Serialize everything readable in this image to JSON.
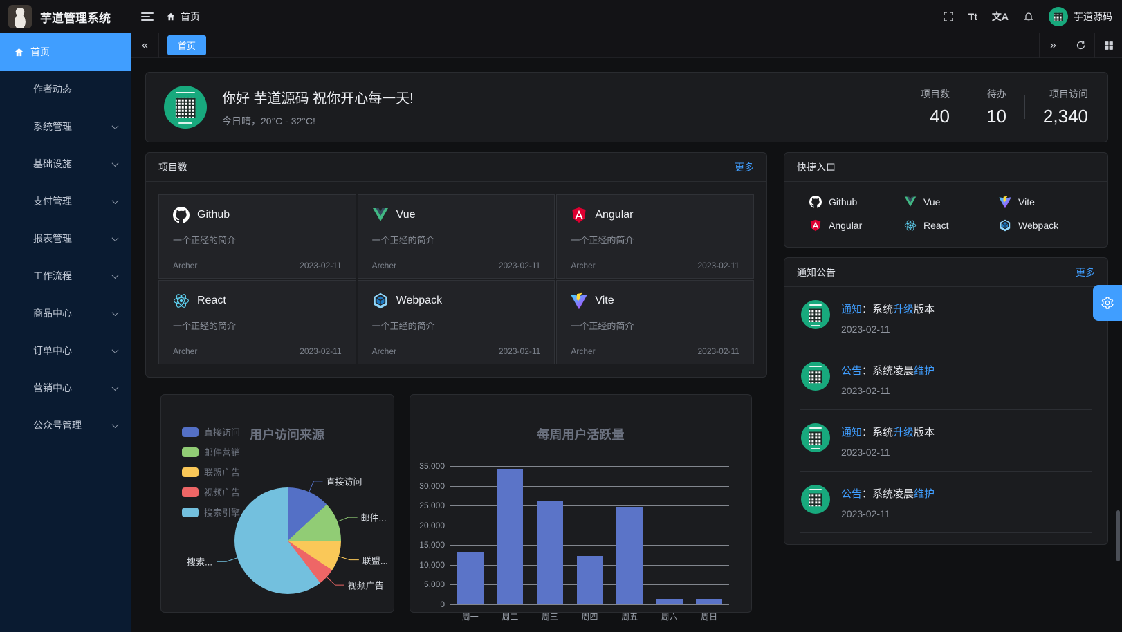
{
  "app": {
    "title": "芋道管理系统",
    "user_name": "芋道源码"
  },
  "header": {
    "breadcrumb_home": "首页",
    "font_size_text": "Tt",
    "locale_text": "文A"
  },
  "tabbar": {
    "active_tab": "首页",
    "collapse_glyph": "«",
    "expand_glyph": "»"
  },
  "sidebar": {
    "items": [
      {
        "label": "首页",
        "active": true,
        "icon": "home",
        "expandable": false
      },
      {
        "label": "作者动态",
        "expandable": false
      },
      {
        "label": "系统管理",
        "expandable": true
      },
      {
        "label": "基础设施",
        "expandable": true
      },
      {
        "label": "支付管理",
        "expandable": true
      },
      {
        "label": "报表管理",
        "expandable": true
      },
      {
        "label": "工作流程",
        "expandable": true
      },
      {
        "label": "商品中心",
        "expandable": true
      },
      {
        "label": "订单中心",
        "expandable": true
      },
      {
        "label": "营销中心",
        "expandable": true
      },
      {
        "label": "公众号管理",
        "expandable": true
      }
    ]
  },
  "greeting": {
    "title": "你好 芋道源码 祝你开心每一天!",
    "subtitle": "今日晴，20°C - 32°C!"
  },
  "stats": [
    {
      "label": "项目数",
      "value": "40"
    },
    {
      "label": "待办",
      "value": "10"
    },
    {
      "label": "项目访问",
      "value": "2,340"
    }
  ],
  "projects": {
    "title": "项目数",
    "more": "更多",
    "items": [
      {
        "name": "Github",
        "icon": "github",
        "desc": "一个正经的简介",
        "author": "Archer",
        "date": "2023-02-11"
      },
      {
        "name": "Vue",
        "icon": "vue",
        "desc": "一个正经的简介",
        "author": "Archer",
        "date": "2023-02-11"
      },
      {
        "name": "Angular",
        "icon": "angular",
        "desc": "一个正经的简介",
        "author": "Archer",
        "date": "2023-02-11"
      },
      {
        "name": "React",
        "icon": "react",
        "desc": "一个正经的简介",
        "author": "Archer",
        "date": "2023-02-11"
      },
      {
        "name": "Webpack",
        "icon": "webpack",
        "desc": "一个正经的简介",
        "author": "Archer",
        "date": "2023-02-11"
      },
      {
        "name": "Vite",
        "icon": "vite",
        "desc": "一个正经的简介",
        "author": "Archer",
        "date": "2023-02-11"
      }
    ]
  },
  "quick_entry": {
    "title": "快捷入口",
    "items": [
      {
        "name": "Github",
        "icon": "github"
      },
      {
        "name": "Vue",
        "icon": "vue"
      },
      {
        "name": "Vite",
        "icon": "vite"
      },
      {
        "name": "Angular",
        "icon": "angular"
      },
      {
        "name": "React",
        "icon": "react"
      },
      {
        "name": "Webpack",
        "icon": "webpack"
      }
    ]
  },
  "notices": {
    "title": "通知公告",
    "more": "更多",
    "items": [
      {
        "segments": [
          {
            "text": "通知",
            "link": true
          },
          {
            "text": "：系统"
          },
          {
            "text": "升级",
            "link": true
          },
          {
            "text": "版本"
          }
        ],
        "date": "2023-02-11"
      },
      {
        "segments": [
          {
            "text": "公告",
            "link": true
          },
          {
            "text": "：系统凌晨"
          },
          {
            "text": "维护",
            "link": true
          }
        ],
        "date": "2023-02-11"
      },
      {
        "segments": [
          {
            "text": "通知",
            "link": true
          },
          {
            "text": "：系统"
          },
          {
            "text": "升级",
            "link": true
          },
          {
            "text": "版本"
          }
        ],
        "date": "2023-02-11"
      },
      {
        "segments": [
          {
            "text": "公告",
            "link": true
          },
          {
            "text": "：系统凌晨"
          },
          {
            "text": "维护",
            "link": true
          }
        ],
        "date": "2023-02-11"
      }
    ]
  },
  "chart_data": [
    {
      "type": "pie",
      "title": "用户访问来源",
      "legend_position": "top-left",
      "slices": [
        {
          "name": "直接访问",
          "label": "直接访问",
          "value": 335,
          "color": "#5470c6"
        },
        {
          "name": "邮件营销",
          "label": "邮件...",
          "value": 310,
          "color": "#91cc75"
        },
        {
          "name": "联盟广告",
          "label": "联盟...",
          "value": 234,
          "color": "#fac858"
        },
        {
          "name": "视频广告",
          "label": "视频广告",
          "value": 135,
          "color": "#ee6666"
        },
        {
          "name": "搜索引擎",
          "label": "搜索...",
          "value": 1548,
          "color": "#73c0de"
        }
      ]
    },
    {
      "type": "bar",
      "title": "每周用户活跃量",
      "categories": [
        "周一",
        "周二",
        "周三",
        "周四",
        "周五",
        "周六",
        "周日"
      ],
      "values": [
        13253,
        34235,
        26321,
        12340,
        24643,
        1322,
        1324
      ],
      "ylim": [
        0,
        35000
      ],
      "ytick_step": 5000,
      "bar_color": "#5b74c8",
      "grid": true,
      "legend_position": "none"
    }
  ],
  "colors": {
    "primary": "#409eff",
    "avatar_green": "#18a97d"
  }
}
